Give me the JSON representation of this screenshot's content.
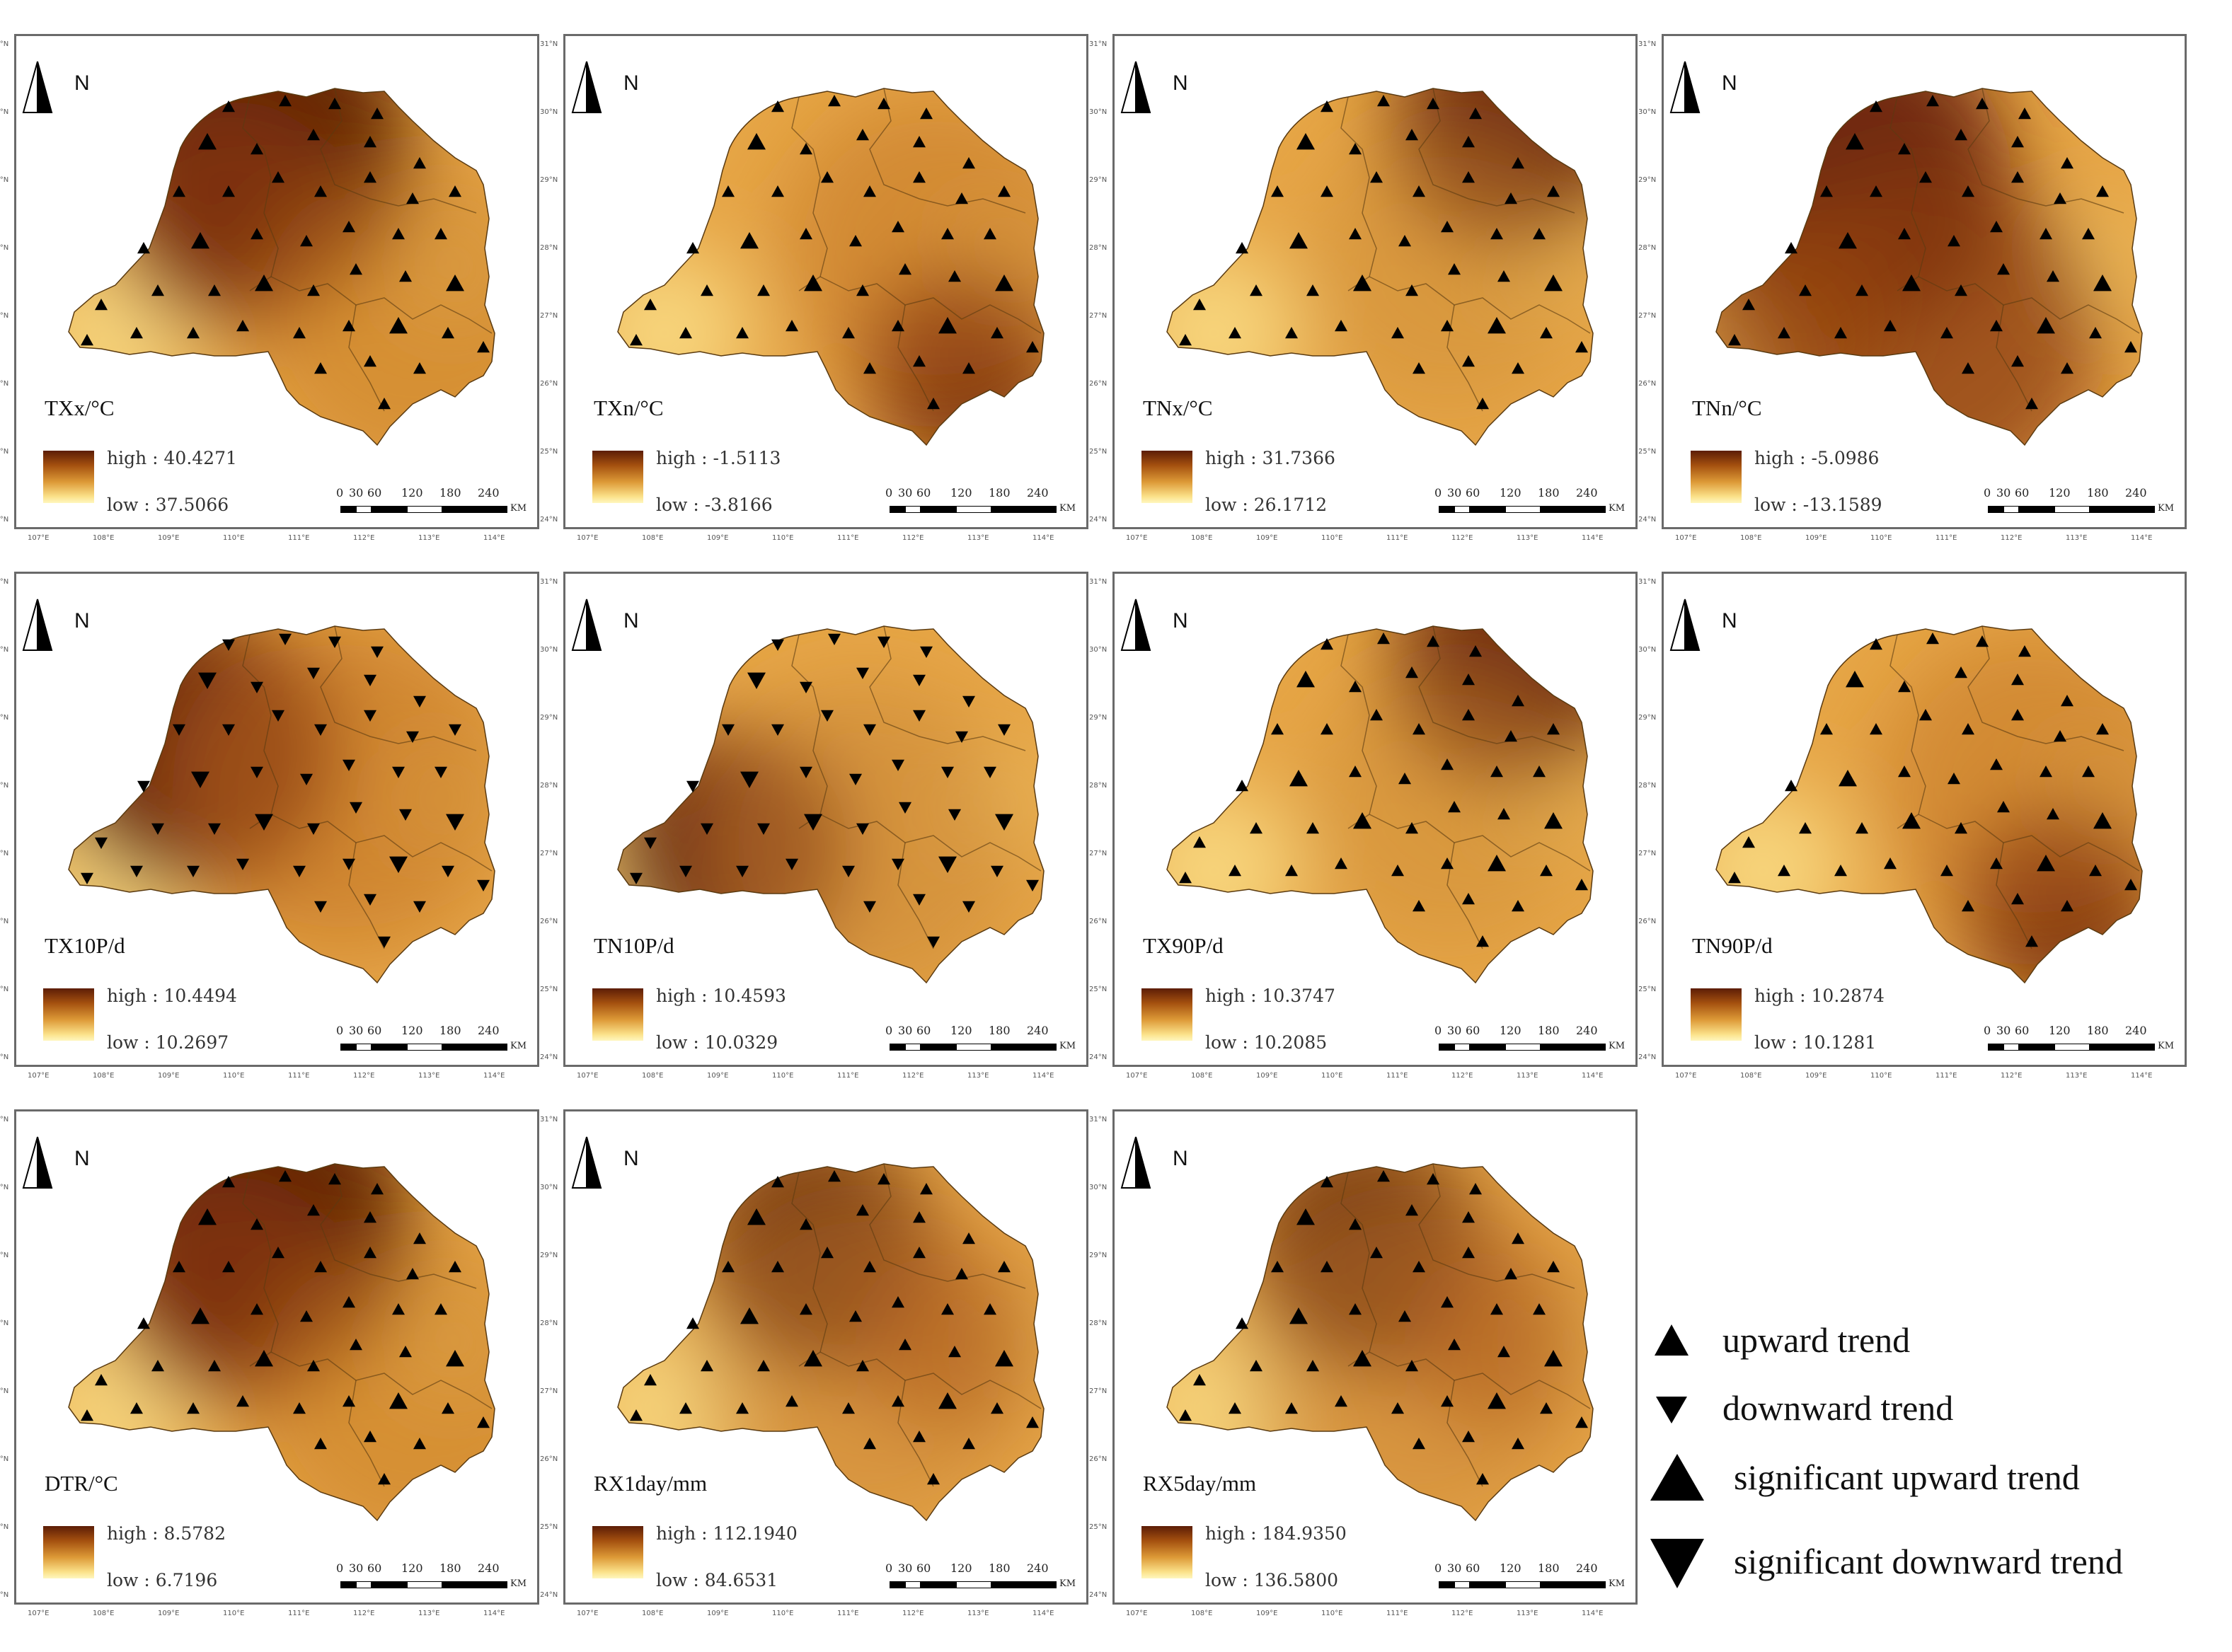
{
  "panels": [
    {
      "label": "TXx/°C",
      "high": "high : 40.4271",
      "low": "low : 37.5066",
      "trend": "up",
      "pattern": "north"
    },
    {
      "label": "TXn/°C",
      "high": "high : -1.5113",
      "low": "low : -3.8166",
      "trend": "up",
      "pattern": "south"
    },
    {
      "label": "TNx/°C",
      "high": "high : 31.7366",
      "low": "low : 26.1712",
      "trend": "up",
      "pattern": "northeast"
    },
    {
      "label": "TNn/°C",
      "high": "high : -5.0986",
      "low": "low : -13.1589",
      "trend": "up",
      "pattern": "dark"
    },
    {
      "label": "TX10P/d",
      "high": "high : 10.4494",
      "low": "low : 10.2697",
      "trend": "down",
      "pattern": "west"
    },
    {
      "label": "TN10P/d",
      "high": "high : 10.4593",
      "low": "low : 10.0329",
      "trend": "down",
      "pattern": "southwest"
    },
    {
      "label": "TX90P/d",
      "high": "high : 10.3747",
      "low": "low : 10.2085",
      "trend": "up",
      "pattern": "northeast"
    },
    {
      "label": "TN90P/d",
      "high": "high : 10.2874",
      "low": "low : 10.1281",
      "trend": "up",
      "pattern": "south"
    },
    {
      "label": "DTR/°C",
      "high": "high : 8.5782",
      "low": "low : 6.7196",
      "trend": "up",
      "pattern": "north"
    },
    {
      "label": "RX1day/mm",
      "high": "high : 112.1940",
      "low": "low : 84.6531",
      "trend": "up",
      "pattern": "center"
    },
    {
      "label": "RX5day/mm",
      "high": "high : 184.9350",
      "low": "low : 136.5800",
      "trend": "up",
      "pattern": "center"
    }
  ],
  "north_label": "N",
  "scale": {
    "ticks": [
      "0",
      "30",
      "60",
      "120",
      "180",
      "240"
    ],
    "unit": "KM"
  },
  "lat_ticks": [
    "31°N",
    "30°N",
    "29°N",
    "28°N",
    "27°N",
    "26°N",
    "25°N",
    "24°N"
  ],
  "lon_ticks": [
    "107°E",
    "108°E",
    "109°E",
    "110°E",
    "111°E",
    "112°E",
    "113°E",
    "114°E"
  ],
  "legend": [
    {
      "label": "upward trend",
      "symbol": "up-small"
    },
    {
      "label": "downward trend",
      "symbol": "down-small"
    },
    {
      "label": "significant upward trend",
      "symbol": "up-large"
    },
    {
      "label": "significant downward trend",
      "symbol": "down-large"
    }
  ]
}
